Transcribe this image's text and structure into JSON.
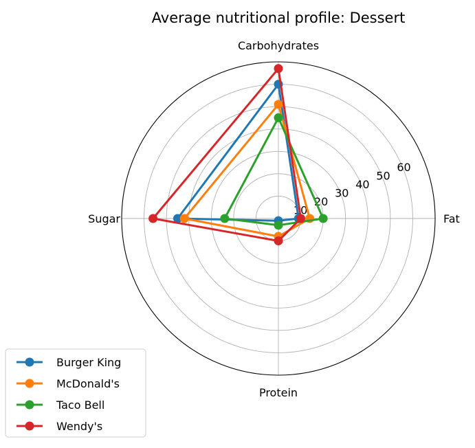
{
  "chart_data": {
    "type": "radar",
    "title": "Average nutritional profile: Dessert",
    "axes": [
      "Fat",
      "Carbohydrates",
      "Sugar",
      "Protein"
    ],
    "rlim": [
      0,
      70
    ],
    "rticks": [
      10,
      20,
      30,
      40,
      50,
      60
    ],
    "rtick_labels": [
      "10",
      "20",
      "30",
      "40",
      "50",
      "60"
    ],
    "grid": true,
    "legend_position": "lower-left",
    "series": [
      {
        "name": "Burger King",
        "color": "#1f77b4",
        "values": [
          9,
          60,
          45,
          1
        ]
      },
      {
        "name": "McDonald's",
        "color": "#ff7f0e",
        "values": [
          14,
          51,
          42,
          8
        ]
      },
      {
        "name": "Taco Bell",
        "color": "#2ca02c",
        "values": [
          20,
          45,
          24,
          3
        ]
      },
      {
        "name": "Wendy's",
        "color": "#d62728",
        "values": [
          10,
          67,
          56,
          10
        ]
      }
    ]
  }
}
